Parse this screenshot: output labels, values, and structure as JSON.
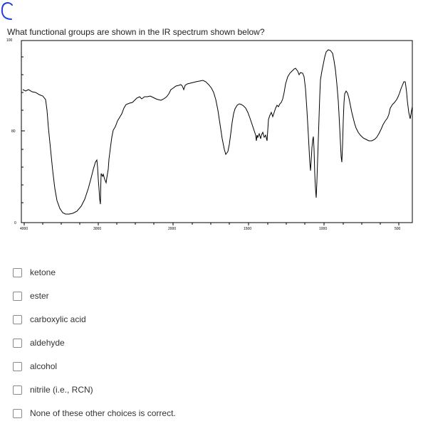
{
  "annotation_mark": "C",
  "question": {
    "text": "What functional groups are shown in the IR spectrum shown below?"
  },
  "spectrum": {
    "y_tick_labels": [
      "100",
      "80",
      "0"
    ],
    "x_tick_labels": [
      "4000",
      "3000",
      "2000",
      "1500",
      "1000",
      "500"
    ]
  },
  "choices": [
    {
      "label": "ketone",
      "checked": false
    },
    {
      "label": "ester",
      "checked": false
    },
    {
      "label": "carboxylic acid",
      "checked": false
    },
    {
      "label": "aldehyde",
      "checked": false
    },
    {
      "label": "alcohol",
      "checked": false
    },
    {
      "label": "nitrile (i.e., RCN)",
      "checked": false
    },
    {
      "label": "None of these other choices is correct.",
      "checked": false
    }
  ]
}
